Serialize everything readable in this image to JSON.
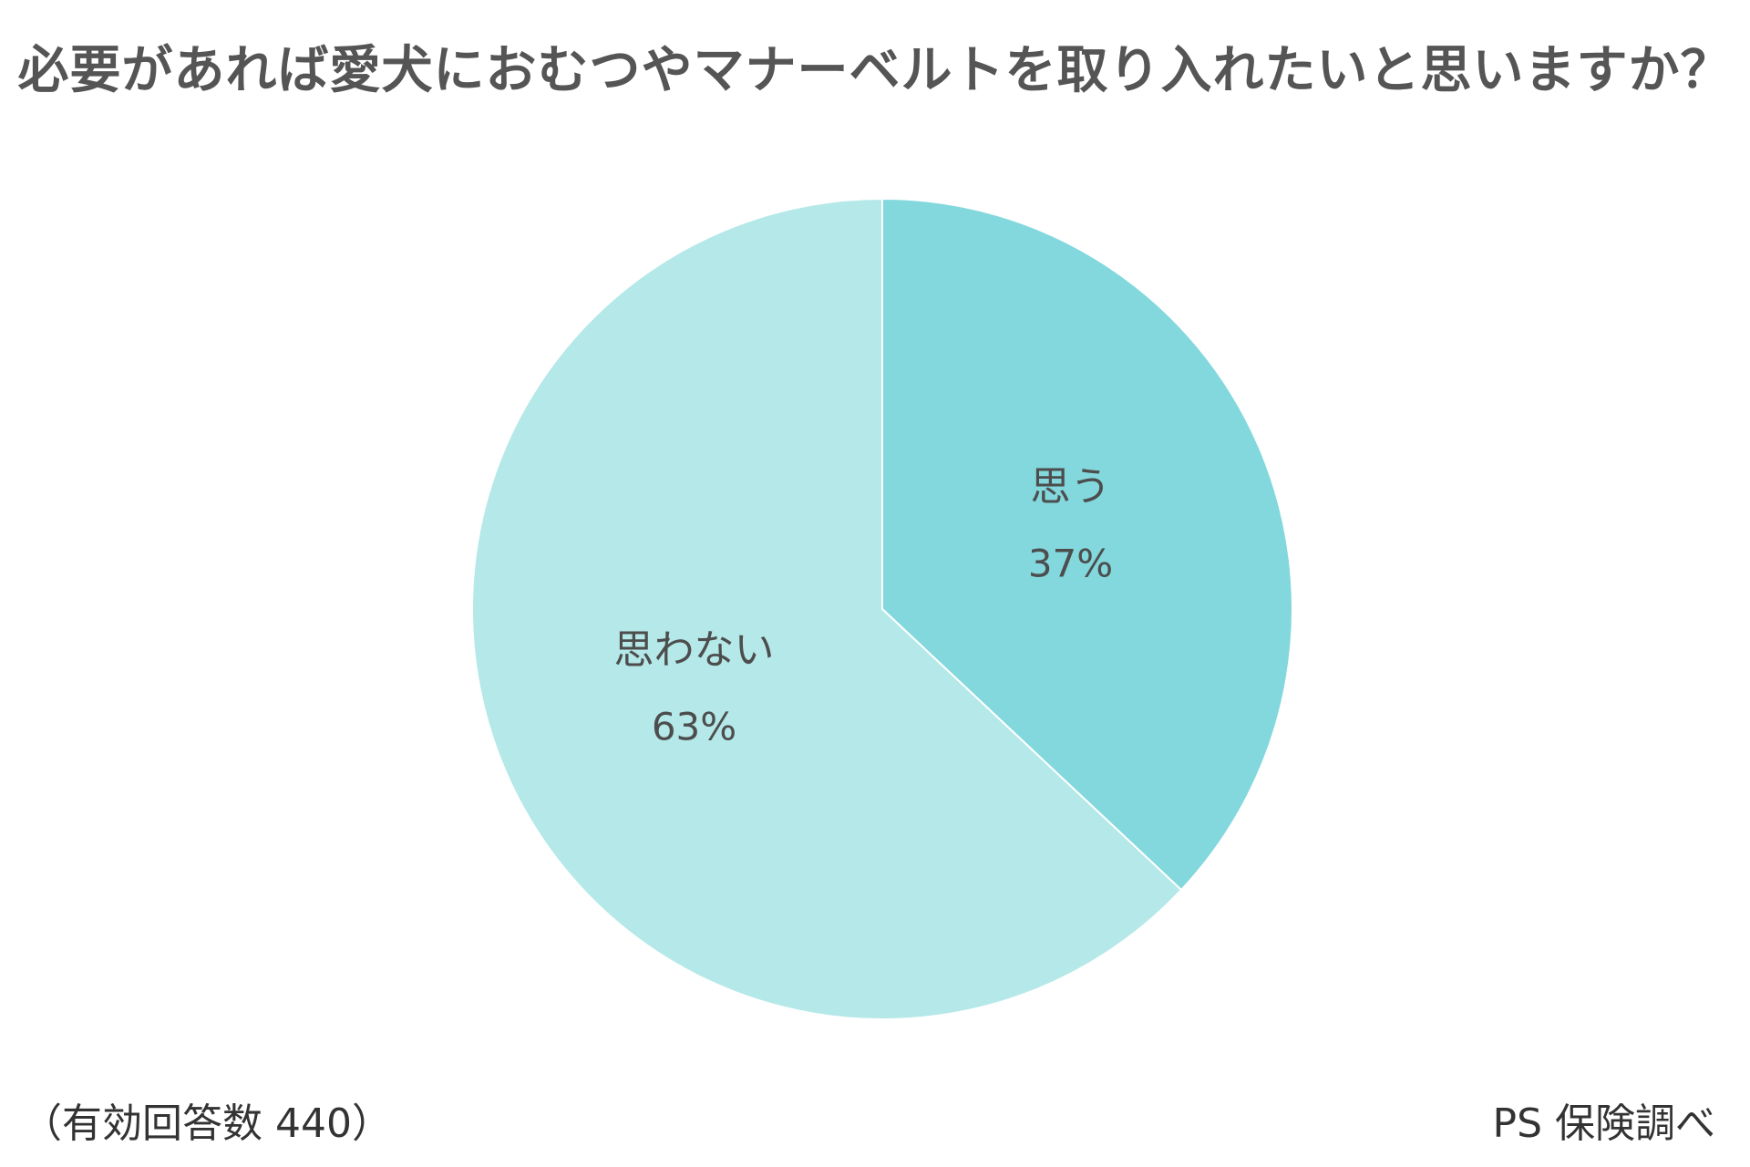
{
  "title": "必要があれば愛犬におむつやマナーベルトを取り入れたいと思いますか？",
  "footnote_left": "（有効回答数 440）",
  "footnote_right": "PS 保険調べ",
  "colors": {
    "slice_yes": "#82d8dd",
    "slice_no": "#b5e8e8",
    "text": "#4d4d4d"
  },
  "chart_data": {
    "type": "pie",
    "title": "必要があれば愛犬におむつやマナーベルトを取り入れたいと思いますか？",
    "start": "12 o'clock",
    "direction": "clockwise",
    "slices": [
      {
        "label": "思う",
        "value": 37,
        "value_label": "37%",
        "color": "#82d8dd"
      },
      {
        "label": "思わない",
        "value": 63,
        "value_label": "63%",
        "color": "#b5e8e8"
      }
    ],
    "total_responses": 440
  }
}
